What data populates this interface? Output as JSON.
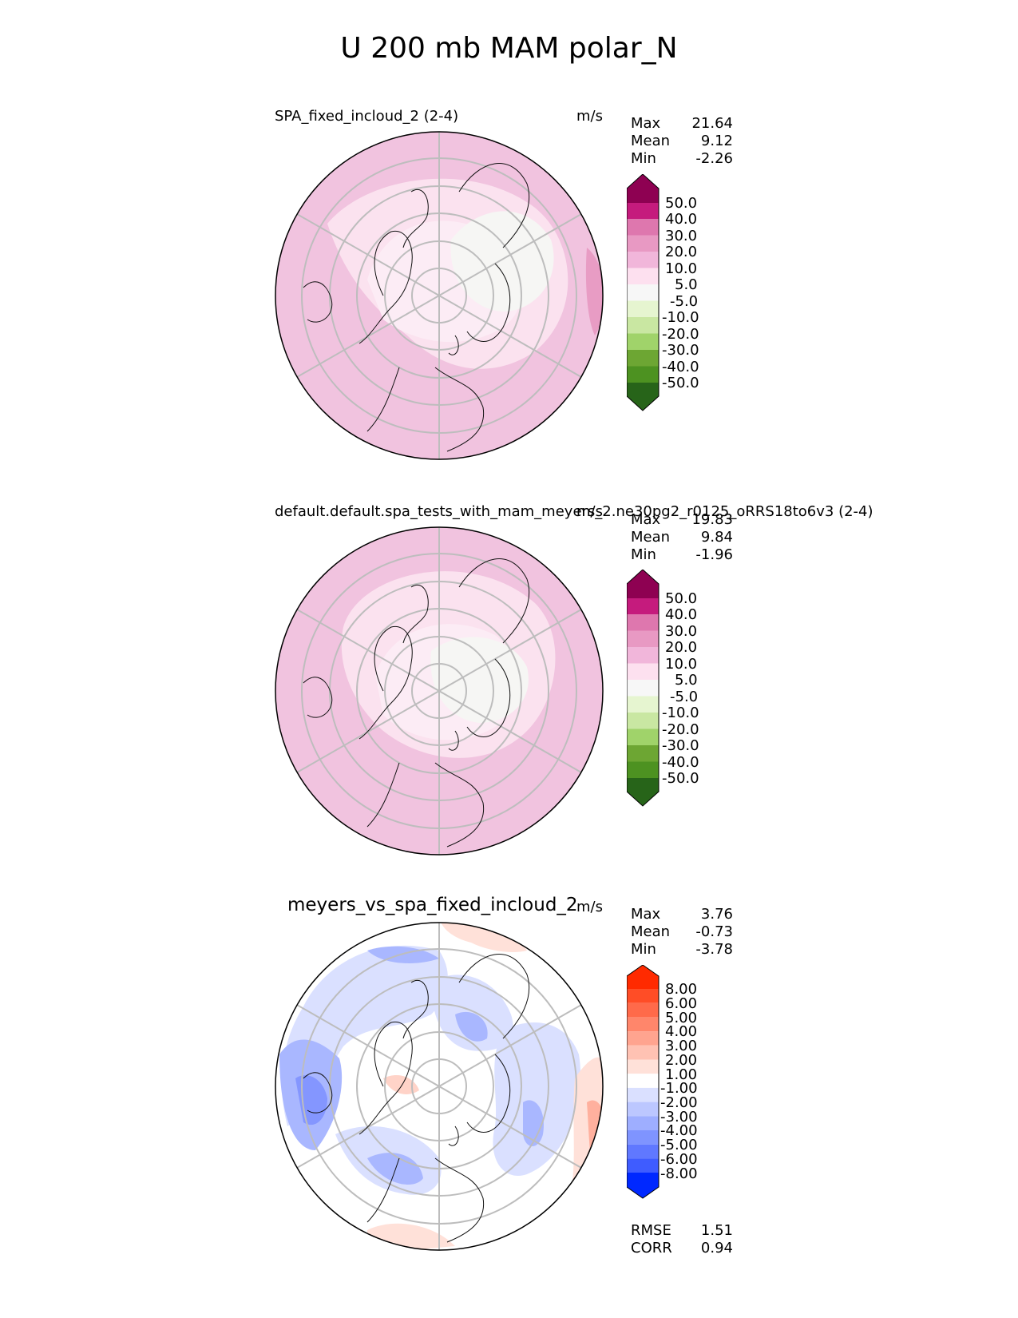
{
  "title": "U 200 mb MAM polar_N",
  "panels": [
    {
      "title": "SPA_fixed_incloud_2 (2-4)",
      "units": "m/s",
      "stats": [
        {
          "label": "Max",
          "value": "21.64"
        },
        {
          "label": "Mean",
          "value": "9.12"
        },
        {
          "label": "Min",
          "value": "-2.26"
        }
      ],
      "colorbar": {
        "labels": [
          "50.0",
          "40.0",
          "30.0",
          "20.0",
          "10.0",
          "5.0",
          "-5.0",
          "-10.0",
          "-20.0",
          "-30.0",
          "-40.0",
          "-50.0"
        ],
        "colors": [
          "#8e0152",
          "#c51b7d",
          "#de77ae",
          "#e899c3",
          "#f1b6da",
          "#fde0ef",
          "#f7f7f7",
          "#e6f5d0",
          "#c9e7a2",
          "#a0d36a",
          "#6da633",
          "#4d9221",
          "#276419"
        ]
      }
    },
    {
      "title": "default.default.spa_tests_with_mam_meyers_2.ne30pg2_r0125_oRRS18to6v3 (2-4)",
      "units": "m/s",
      "stats": [
        {
          "label": "Max",
          "value": "19.83"
        },
        {
          "label": "Mean",
          "value": "9.84"
        },
        {
          "label": "Min",
          "value": "-1.96"
        }
      ],
      "colorbar": {
        "labels": [
          "50.0",
          "40.0",
          "30.0",
          "20.0",
          "10.0",
          "5.0",
          "-5.0",
          "-10.0",
          "-20.0",
          "-30.0",
          "-40.0",
          "-50.0"
        ],
        "colors": [
          "#8e0152",
          "#c51b7d",
          "#de77ae",
          "#e899c3",
          "#f1b6da",
          "#fde0ef",
          "#f7f7f7",
          "#e6f5d0",
          "#c9e7a2",
          "#a0d36a",
          "#6da633",
          "#4d9221",
          "#276419"
        ]
      }
    },
    {
      "title": "meyers_vs_spa_fixed_incloud_2",
      "units": "m/s",
      "stats": [
        {
          "label": "Max",
          "value": "3.76"
        },
        {
          "label": "Mean",
          "value": "-0.73"
        },
        {
          "label": "Min",
          "value": "-3.78"
        }
      ],
      "colorbar": {
        "labels": [
          "8.00",
          "6.00",
          "5.00",
          "4.00",
          "3.00",
          "2.00",
          "1.00",
          "-1.00",
          "-2.00",
          "-3.00",
          "-4.00",
          "-5.00",
          "-6.00",
          "-8.00"
        ],
        "colors": [
          "#ff2a00",
          "#ff4d26",
          "#ff6a4a",
          "#ff866b",
          "#ffa48f",
          "#ffc2b3",
          "#ffe1d9",
          "#ffffff",
          "#dae0ff",
          "#bcc7ff",
          "#9eaeff",
          "#7f94ff",
          "#6078ff",
          "#3f5cff",
          "#1f3fff",
          "#0028ff"
        ]
      },
      "metrics": [
        {
          "label": "RMSE",
          "value": "1.51"
        },
        {
          "label": "CORR",
          "value": "0.94"
        }
      ]
    }
  ],
  "chart_data": [
    {
      "type": "heatmap",
      "title": "SPA_fixed_incloud_2 (2-4)",
      "projection": "north polar stereographic",
      "units": "m/s",
      "levels": [
        -50,
        -40,
        -30,
        -20,
        -10,
        -5,
        5,
        10,
        20,
        30,
        40,
        50
      ],
      "stats": {
        "max": 21.64,
        "mean": 9.12,
        "min": -2.26
      }
    },
    {
      "type": "heatmap",
      "title": "default.default.spa_tests_with_mam_meyers_2.ne30pg2_r0125_oRRS18to6v3 (2-4)",
      "projection": "north polar stereographic",
      "units": "m/s",
      "levels": [
        -50,
        -40,
        -30,
        -20,
        -10,
        -5,
        5,
        10,
        20,
        30,
        40,
        50
      ],
      "stats": {
        "max": 19.83,
        "mean": 9.84,
        "min": -1.96
      }
    },
    {
      "type": "heatmap",
      "title": "meyers_vs_spa_fixed_incloud_2",
      "projection": "north polar stereographic",
      "units": "m/s",
      "levels": [
        -8,
        -6,
        -5,
        -4,
        -3,
        -2,
        -1,
        1,
        2,
        3,
        4,
        5,
        6,
        8
      ],
      "stats": {
        "max": 3.76,
        "mean": -0.73,
        "min": -3.78
      },
      "rmse": 1.51,
      "corr": 0.94
    }
  ]
}
